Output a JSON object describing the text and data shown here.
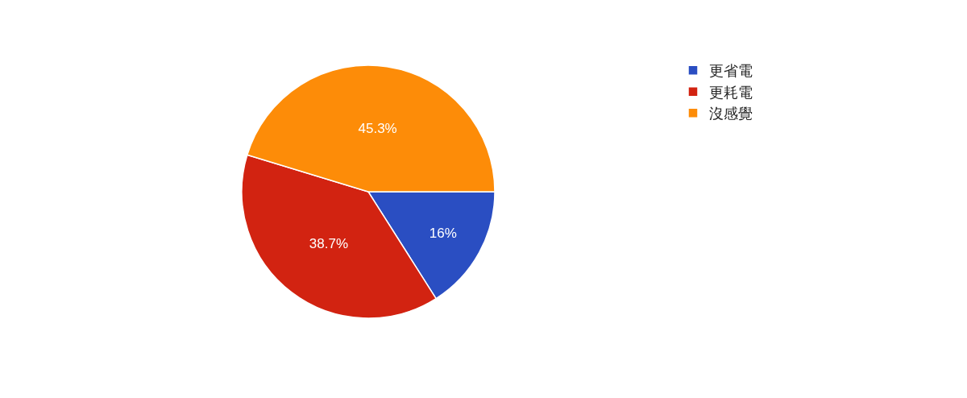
{
  "chart_data": {
    "type": "pie",
    "categories": [
      "更省電",
      "更耗電",
      "沒感覺"
    ],
    "values": [
      16,
      38.7,
      45.3
    ],
    "value_labels": [
      "16%",
      "38.7%",
      "45.3%"
    ],
    "colors": [
      "#2a4ec2",
      "#d22311",
      "#fd8c08"
    ],
    "legend": "top right"
  }
}
